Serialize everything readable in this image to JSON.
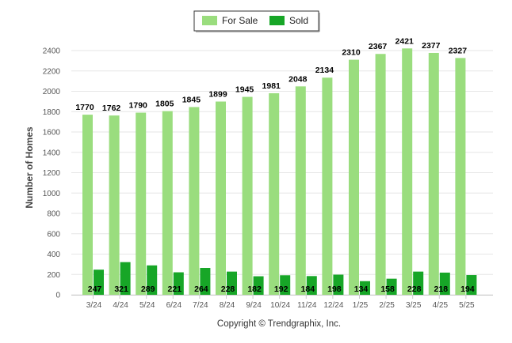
{
  "chart_data": {
    "type": "bar",
    "categories": [
      "3/24",
      "4/24",
      "5/24",
      "6/24",
      "7/24",
      "8/24",
      "9/24",
      "10/24",
      "11/24",
      "12/24",
      "1/25",
      "2/25",
      "3/25",
      "4/25",
      "5/25"
    ],
    "series": [
      {
        "name": "For Sale",
        "color": "#9ADD7E",
        "values": [
          1770,
          1762,
          1790,
          1805,
          1845,
          1899,
          1945,
          1981,
          2048,
          2134,
          2310,
          2367,
          2421,
          2377,
          2327
        ]
      },
      {
        "name": "Sold",
        "color": "#17A627",
        "values": [
          247,
          321,
          289,
          221,
          264,
          228,
          182,
          192,
          184,
          198,
          134,
          158,
          228,
          218,
          194
        ]
      }
    ],
    "ylabel": "Number of Homes",
    "xlabel": "",
    "ylim": [
      0,
      2400
    ],
    "yticks": [
      0,
      200,
      400,
      600,
      800,
      1000,
      1200,
      1400,
      1600,
      1800,
      2000,
      2200,
      2400
    ],
    "grid": true,
    "legend_position": "top-center",
    "data_labels": true
  },
  "footer": {
    "copyright": "Copyright © Trendgraphix, Inc."
  }
}
